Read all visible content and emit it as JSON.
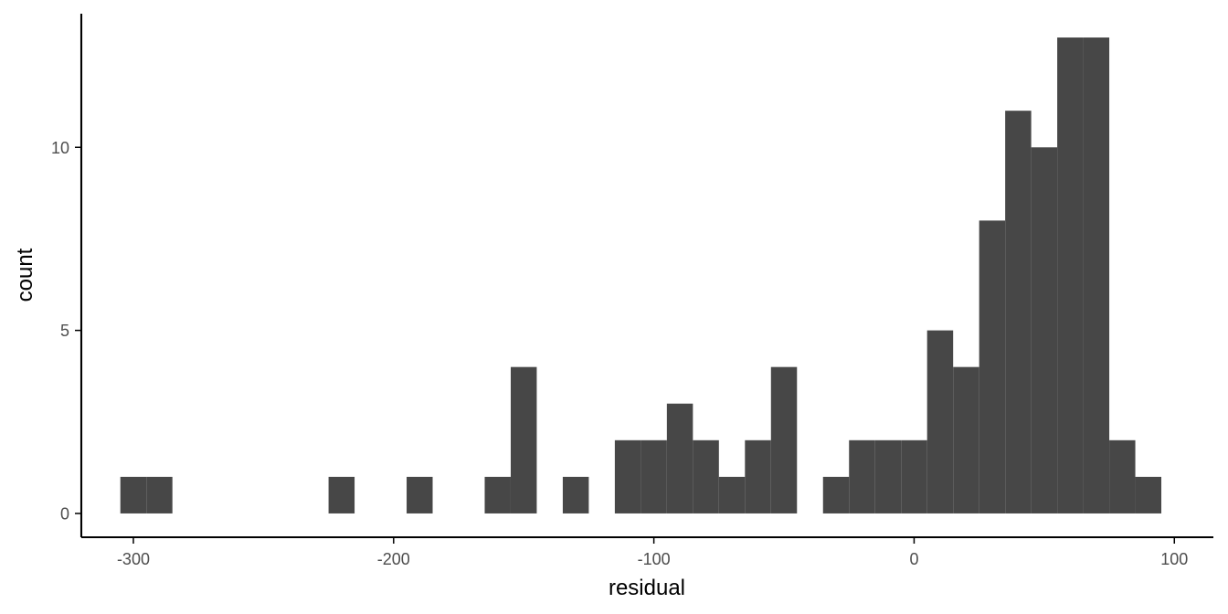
{
  "chart_data": {
    "type": "bar",
    "title": "",
    "xlabel": "residual",
    "ylabel": "count",
    "bin_width": 10,
    "bins": [
      {
        "x0": -305,
        "x1": -295,
        "count": 1
      },
      {
        "x0": -295,
        "x1": -285,
        "count": 1
      },
      {
        "x0": -285,
        "x1": -275,
        "count": 0
      },
      {
        "x0": -275,
        "x1": -265,
        "count": 0
      },
      {
        "x0": -265,
        "x1": -255,
        "count": 0
      },
      {
        "x0": -255,
        "x1": -245,
        "count": 0
      },
      {
        "x0": -245,
        "x1": -235,
        "count": 0
      },
      {
        "x0": -235,
        "x1": -225,
        "count": 0
      },
      {
        "x0": -225,
        "x1": -215,
        "count": 1
      },
      {
        "x0": -215,
        "x1": -205,
        "count": 0
      },
      {
        "x0": -205,
        "x1": -195,
        "count": 0
      },
      {
        "x0": -195,
        "x1": -185,
        "count": 1
      },
      {
        "x0": -185,
        "x1": -175,
        "count": 0
      },
      {
        "x0": -175,
        "x1": -165,
        "count": 0
      },
      {
        "x0": -165,
        "x1": -155,
        "count": 1
      },
      {
        "x0": -155,
        "x1": -145,
        "count": 4
      },
      {
        "x0": -145,
        "x1": -135,
        "count": 0
      },
      {
        "x0": -135,
        "x1": -125,
        "count": 1
      },
      {
        "x0": -125,
        "x1": -115,
        "count": 0
      },
      {
        "x0": -115,
        "x1": -105,
        "count": 2
      },
      {
        "x0": -105,
        "x1": -95,
        "count": 2
      },
      {
        "x0": -95,
        "x1": -85,
        "count": 3
      },
      {
        "x0": -85,
        "x1": -75,
        "count": 2
      },
      {
        "x0": -75,
        "x1": -65,
        "count": 1
      },
      {
        "x0": -65,
        "x1": -55,
        "count": 2
      },
      {
        "x0": -55,
        "x1": -45,
        "count": 4
      },
      {
        "x0": -45,
        "x1": -35,
        "count": 0
      },
      {
        "x0": -35,
        "x1": -25,
        "count": 1
      },
      {
        "x0": -25,
        "x1": -15,
        "count": 2
      },
      {
        "x0": -15,
        "x1": -5,
        "count": 2
      },
      {
        "x0": -5,
        "x1": 5,
        "count": 2
      },
      {
        "x0": 5,
        "x1": 15,
        "count": 5
      },
      {
        "x0": 15,
        "x1": 25,
        "count": 4
      },
      {
        "x0": 25,
        "x1": 35,
        "count": 8
      },
      {
        "x0": 35,
        "x1": 45,
        "count": 11
      },
      {
        "x0": 45,
        "x1": 55,
        "count": 10
      },
      {
        "x0": 55,
        "x1": 65,
        "count": 13
      },
      {
        "x0": 65,
        "x1": 75,
        "count": 13
      },
      {
        "x0": 75,
        "x1": 85,
        "count": 2
      },
      {
        "x0": 85,
        "x1": 95,
        "count": 1
      }
    ],
    "xlim": [
      -320,
      115
    ],
    "ylim": [
      -0.65,
      13.65
    ],
    "x_ticks": [
      -300,
      -200,
      -100,
      0,
      100
    ],
    "x_tick_labels": [
      "-300",
      "-200",
      "-100",
      "0",
      "100"
    ],
    "y_ticks": [
      0,
      5,
      10
    ],
    "y_tick_labels": [
      "0",
      "5",
      "10"
    ],
    "grid": false,
    "legend": "none",
    "colors": {
      "bar": "#474747",
      "axis": "#000000",
      "tick_text": "#4d4d4d",
      "title_text": "#000000"
    }
  }
}
